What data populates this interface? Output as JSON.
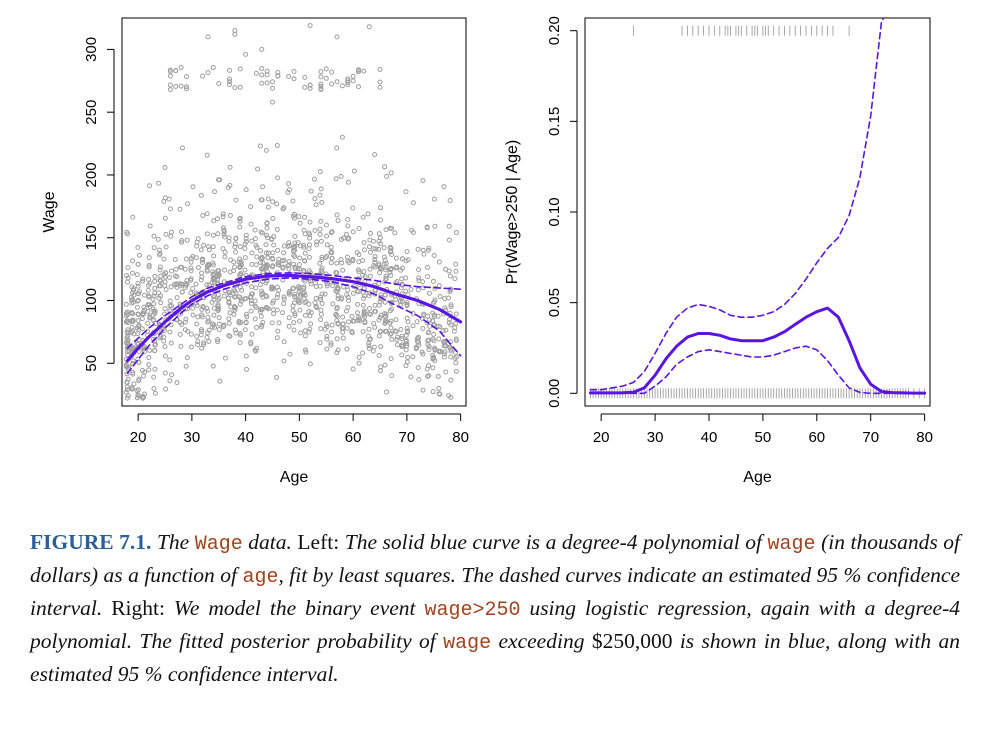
{
  "colors": {
    "points": "#9e9e9e",
    "fit": "#5a16e0",
    "axis": "#000000"
  },
  "chart_data": [
    {
      "id": "left",
      "type": "scatter",
      "xlabel": "Age",
      "ylabel": "Wage",
      "xlim": [
        17,
        81
      ],
      "ylim": [
        16,
        325
      ],
      "xticks": [
        20,
        30,
        40,
        50,
        60,
        70,
        80
      ],
      "yticks": [
        50,
        100,
        150,
        200,
        250,
        300
      ],
      "xtick_labels": [
        "20",
        "30",
        "40",
        "50",
        "60",
        "70",
        "80"
      ],
      "ytick_labels": [
        "50",
        "100",
        "150",
        "200",
        "250",
        "300"
      ],
      "grid": false,
      "scatter_description": "gray open circles, about 3000 workers, ages 18 to 80, wages 20 to 320; a separate high-earner band around wage 270 to 285",
      "fit_x": [
        18,
        20,
        22,
        25,
        28,
        30,
        33,
        36,
        40,
        44,
        48,
        52,
        56,
        60,
        64,
        68,
        72,
        76,
        80
      ],
      "fit_y": [
        52,
        62,
        71,
        83,
        94,
        100,
        107,
        112,
        117,
        119.5,
        120,
        119,
        117.5,
        115,
        111,
        105,
        100,
        93,
        83
      ],
      "upper_ci": [
        62,
        70,
        78,
        88,
        97,
        103,
        110,
        114,
        119,
        121.5,
        122,
        121.5,
        120,
        118,
        116,
        113,
        111,
        110,
        109
      ],
      "lower_ci": [
        42,
        53,
        64,
        78,
        90,
        97,
        104,
        109,
        114,
        117,
        118,
        117,
        115,
        111,
        105,
        96,
        88,
        76,
        56
      ]
    },
    {
      "id": "right",
      "type": "line",
      "xlabel": "Age",
      "ylabel": "Pr(Wage>250 | Age)",
      "xlim": [
        17,
        81
      ],
      "ylim": [
        -0.007,
        0.207
      ],
      "xticks": [
        20,
        30,
        40,
        50,
        60,
        70,
        80
      ],
      "yticks": [
        0.0,
        0.05,
        0.1,
        0.15,
        0.2
      ],
      "xtick_labels": [
        "20",
        "30",
        "40",
        "50",
        "60",
        "70",
        "80"
      ],
      "ytick_labels": [
        "0.00",
        "0.05",
        "0.10",
        "0.15",
        "0.20"
      ],
      "grid": false,
      "fit_x": [
        18,
        20,
        22,
        24,
        26,
        28,
        30,
        32,
        34,
        36,
        38,
        40,
        42,
        44,
        46,
        48,
        50,
        52,
        54,
        56,
        58,
        60,
        62,
        64,
        66,
        68,
        70,
        72,
        74,
        76,
        78,
        80
      ],
      "fit_y": [
        0.0002,
        0.0002,
        0.0002,
        0.0003,
        0.0006,
        0.003,
        0.01,
        0.019,
        0.026,
        0.031,
        0.033,
        0.033,
        0.032,
        0.03,
        0.029,
        0.029,
        0.029,
        0.031,
        0.034,
        0.038,
        0.042,
        0.045,
        0.047,
        0.042,
        0.029,
        0.014,
        0.005,
        0.001,
        0.0004,
        0.0002,
        0.0001,
        0.0001
      ],
      "upper_ci": [
        0.002,
        0.002,
        0.003,
        0.004,
        0.006,
        0.012,
        0.022,
        0.033,
        0.042,
        0.047,
        0.049,
        0.048,
        0.046,
        0.043,
        0.042,
        0.042,
        0.043,
        0.045,
        0.049,
        0.055,
        0.063,
        0.072,
        0.08,
        0.086,
        0.098,
        0.119,
        0.153,
        0.205,
        0.215,
        0.22,
        0.22,
        0.22
      ],
      "lower_ci": [
        0.0,
        0.0,
        0.0,
        0.0,
        0.0,
        0.0,
        0.004,
        0.009,
        0.016,
        0.02,
        0.023,
        0.024,
        0.023,
        0.022,
        0.021,
        0.02,
        0.02,
        0.021,
        0.023,
        0.025,
        0.026,
        0.024,
        0.018,
        0.01,
        0.003,
        0.0005,
        0.0,
        0.0,
        0.0,
        0.0,
        0.0,
        0.0
      ],
      "rug_description": "tick marks near 0.20 for workers with wage>250 (ages ~26 to ~66) and dense tick marks at 0.00 for all other workers (ages 18 to 80)"
    }
  ],
  "caption": {
    "label": "FIGURE 7.1.",
    "segments": [
      {
        "t": " The ",
        "s": "it"
      },
      {
        "t": "Wage",
        "s": "code"
      },
      {
        "t": " data. ",
        "s": "it"
      },
      {
        "t": "Left:",
        "s": "rm"
      },
      {
        "t": " The solid blue curve is a degree-4 polynomial of ",
        "s": "it"
      },
      {
        "t": "wage",
        "s": "code"
      },
      {
        "t": " (in thousands of dollars) as a function of ",
        "s": "it"
      },
      {
        "t": "age",
        "s": "code"
      },
      {
        "t": ", fit by least squares. The dashed curves indicate an estimated 95 % confidence interval. ",
        "s": "it"
      },
      {
        "t": "Right:",
        "s": "rm"
      },
      {
        "t": " We model the binary event ",
        "s": "it"
      },
      {
        "t": "wage>250",
        "s": "code"
      },
      {
        "t": " using logistic regression, again with a degree-4 polynomial. The fitted posterior probability of ",
        "s": "it"
      },
      {
        "t": "wage",
        "s": "code"
      },
      {
        "t": " exceeding ",
        "s": "it"
      },
      {
        "t": "$250,000",
        "s": "rm"
      },
      {
        "t": " is shown in blue, along with an estimated 95 % confidence interval.",
        "s": "it"
      }
    ]
  }
}
